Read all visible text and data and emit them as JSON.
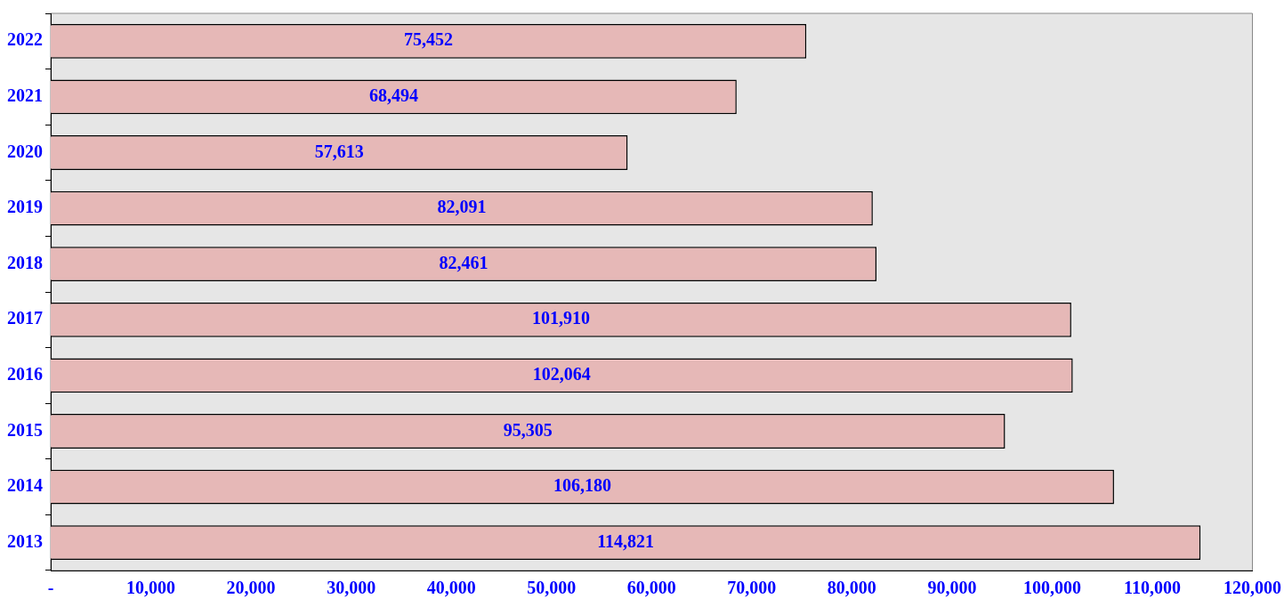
{
  "chart_data": {
    "type": "bar",
    "orientation": "horizontal",
    "categories": [
      "2022",
      "2021",
      "2020",
      "2019",
      "2018",
      "2017",
      "2016",
      "2015",
      "2014",
      "2013"
    ],
    "values": [
      75452,
      68494,
      57613,
      82091,
      82461,
      101910,
      102064,
      95305,
      106180,
      114821
    ],
    "value_labels": [
      "75,452",
      "68,494",
      "57,613",
      "82,091",
      "82,461",
      "101,910",
      "102,064",
      "95,305",
      "106,180",
      "114,821"
    ],
    "color": "#e6b8b7",
    "xlim": [
      0,
      120000
    ],
    "xticks": [
      {
        "value": 0,
        "label": "-"
      },
      {
        "value": 10000,
        "label": "10,000"
      },
      {
        "value": 20000,
        "label": "20,000"
      },
      {
        "value": 30000,
        "label": "30,000"
      },
      {
        "value": 40000,
        "label": "40,000"
      },
      {
        "value": 50000,
        "label": "50,000"
      },
      {
        "value": 60000,
        "label": "60,000"
      },
      {
        "value": 70000,
        "label": "70,000"
      },
      {
        "value": 80000,
        "label": "80,000"
      },
      {
        "value": 90000,
        "label": "90,000"
      },
      {
        "value": 100000,
        "label": "100,000"
      },
      {
        "value": 110000,
        "label": "110,000"
      },
      {
        "value": 120000,
        "label": "120,000"
      }
    ],
    "grid": false,
    "legend": false
  }
}
